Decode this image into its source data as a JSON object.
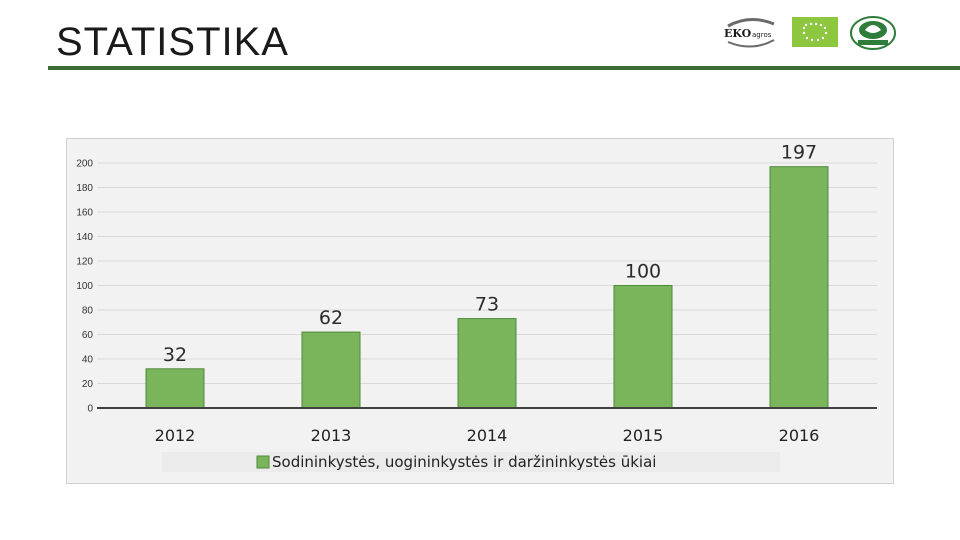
{
  "header": {
    "title": "STATISTIKA",
    "logos": [
      {
        "name": "ekoagros-logo",
        "text": "EKOagros"
      },
      {
        "name": "eu-organic-leaf-logo"
      },
      {
        "name": "bio-seal-logo"
      }
    ]
  },
  "colors": {
    "rule": "#3d6b35",
    "bar_fill": "#7ab55c",
    "bar_stroke": "#4f8a3a",
    "grid": "#d9d9d9",
    "axis": "#404040"
  },
  "chart_data": {
    "type": "bar",
    "categories": [
      "2012",
      "2013",
      "2014",
      "2015",
      "2016"
    ],
    "series": [
      {
        "name": "Sodininkystės, uogininkystės ir daržininkystės ūkiai",
        "values": [
          32,
          62,
          73,
          100,
          197
        ]
      }
    ],
    "data_labels": [
      "32",
      "62",
      "73",
      "100",
      "197"
    ],
    "y_ticks": [
      "0",
      "20",
      "40",
      "60",
      "80",
      "100",
      "120",
      "140",
      "160",
      "180",
      "200"
    ],
    "ylim": [
      0,
      200
    ],
    "grid": true,
    "legend": "bottom",
    "title": "",
    "xlabel": "",
    "ylabel": ""
  }
}
